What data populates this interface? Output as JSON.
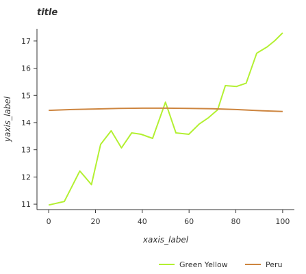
{
  "chart_data": {
    "type": "line",
    "title": "title",
    "xlabel": "xaxis_label",
    "ylabel": "yaxis_label",
    "xlim": [
      -5,
      105
    ],
    "ylim": [
      10.8,
      17.45
    ],
    "x_ticks": [
      0,
      20,
      40,
      60,
      80,
      100
    ],
    "y_ticks": [
      11,
      12,
      13,
      14,
      15,
      16,
      17
    ],
    "grid": false,
    "legend_position": "bottom",
    "series": [
      {
        "name": "Green Yellow",
        "color": "#b3f032",
        "x": [
          0,
          6.7,
          13.3,
          18.3,
          22.2,
          26.7,
          31.1,
          35.5,
          39.5,
          44.4,
          49.9,
          54.4,
          59.9,
          64.4,
          68.3,
          72.2,
          75.5,
          80.3,
          84.4,
          88.9,
          93.3,
          96.6,
          100
        ],
        "y": [
          10.97,
          11.1,
          12.22,
          11.72,
          13.2,
          13.7,
          13.07,
          13.62,
          13.57,
          13.42,
          14.75,
          13.62,
          13.57,
          13.95,
          14.18,
          14.47,
          15.36,
          15.33,
          15.45,
          16.55,
          16.78,
          17.01,
          17.3
        ]
      },
      {
        "name": "Peru",
        "color": "#cd853f",
        "x": [
          0,
          10,
          20,
          30,
          40,
          50,
          60,
          70,
          80,
          90,
          100
        ],
        "y": [
          14.45,
          14.48,
          14.5,
          14.52,
          14.53,
          14.53,
          14.52,
          14.51,
          14.48,
          14.44,
          14.41
        ]
      }
    ]
  }
}
